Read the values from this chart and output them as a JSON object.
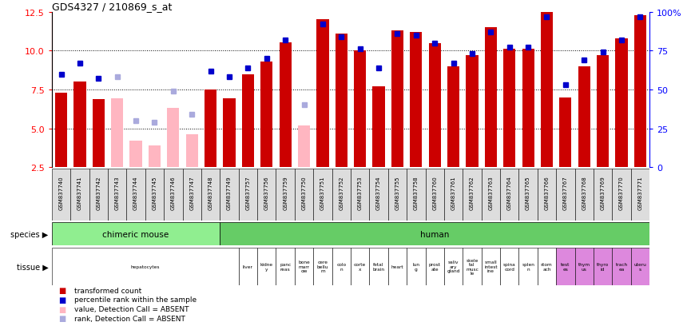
{
  "title": "GDS4327 / 210869_s_at",
  "samples": [
    "GSM837740",
    "GSM837741",
    "GSM837742",
    "GSM837743",
    "GSM837744",
    "GSM837745",
    "GSM837746",
    "GSM837747",
    "GSM837748",
    "GSM837749",
    "GSM837757",
    "GSM837756",
    "GSM837759",
    "GSM837750",
    "GSM837751",
    "GSM837752",
    "GSM837753",
    "GSM837754",
    "GSM837755",
    "GSM837758",
    "GSM837760",
    "GSM837761",
    "GSM837762",
    "GSM837763",
    "GSM837764",
    "GSM837765",
    "GSM837766",
    "GSM837767",
    "GSM837768",
    "GSM837769",
    "GSM837770",
    "GSM837771"
  ],
  "values": [
    7.3,
    8.0,
    6.9,
    6.95,
    4.2,
    3.9,
    6.3,
    4.6,
    7.5,
    6.95,
    8.5,
    9.3,
    10.55,
    5.2,
    12.0,
    11.1,
    10.0,
    7.7,
    11.3,
    11.2,
    10.5,
    9.0,
    9.7,
    11.5,
    10.1,
    10.1,
    12.5,
    7.0,
    9.0,
    9.7,
    10.8,
    12.3
  ],
  "absent": [
    false,
    false,
    false,
    true,
    true,
    true,
    true,
    true,
    false,
    false,
    false,
    false,
    false,
    true,
    false,
    false,
    false,
    false,
    false,
    false,
    false,
    false,
    false,
    false,
    false,
    false,
    false,
    false,
    false,
    false,
    false,
    false
  ],
  "percentile": [
    60,
    67,
    57,
    58,
    30,
    29,
    49,
    34,
    62,
    58,
    64,
    70,
    82,
    40,
    92,
    84,
    76,
    64,
    86,
    85,
    80,
    67,
    73,
    87,
    77,
    77,
    97,
    53,
    69,
    74,
    82,
    97
  ],
  "species_groups": [
    {
      "label": "chimeric mouse",
      "start": 0,
      "end": 9,
      "color": "#90EE90"
    },
    {
      "label": "human",
      "start": 9,
      "end": 32,
      "color": "#66CC66"
    }
  ],
  "tissue_labels": [
    {
      "label": "hepatocytes",
      "start": 0,
      "end": 10
    },
    {
      "label": "liver",
      "start": 10,
      "end": 11
    },
    {
      "label": "kidne\ny",
      "start": 11,
      "end": 12
    },
    {
      "label": "panc\nreas",
      "start": 12,
      "end": 13
    },
    {
      "label": "bone\nmarr\now",
      "start": 13,
      "end": 14
    },
    {
      "label": "cere\nbellu\nm",
      "start": 14,
      "end": 15
    },
    {
      "label": "colo\nn",
      "start": 15,
      "end": 16
    },
    {
      "label": "corte\nx",
      "start": 16,
      "end": 17
    },
    {
      "label": "fetal\nbrain",
      "start": 17,
      "end": 18
    },
    {
      "label": "heart",
      "start": 18,
      "end": 19
    },
    {
      "label": "lun\ng",
      "start": 19,
      "end": 20
    },
    {
      "label": "prost\nate",
      "start": 20,
      "end": 21
    },
    {
      "label": "saliv\nary\ngland",
      "start": 21,
      "end": 22
    },
    {
      "label": "skele\ntal\nmusc\nle",
      "start": 22,
      "end": 23
    },
    {
      "label": "small\nintest\nine",
      "start": 23,
      "end": 24
    },
    {
      "label": "spina\ncord",
      "start": 24,
      "end": 25
    },
    {
      "label": "splen\nn",
      "start": 25,
      "end": 26
    },
    {
      "label": "stom\nach",
      "start": 26,
      "end": 27
    },
    {
      "label": "test\nes",
      "start": 27,
      "end": 28
    },
    {
      "label": "thym\nus",
      "start": 28,
      "end": 29
    },
    {
      "label": "thyro\nid",
      "start": 29,
      "end": 30
    },
    {
      "label": "trach\nea",
      "start": 30,
      "end": 31
    },
    {
      "label": "uteru\ns",
      "start": 31,
      "end": 32
    }
  ],
  "tissue_colors": {
    "hepatocytes": "#FFFFFF",
    "liver": "#FFFFFF",
    "kidne\ny": "#FFFFFF",
    "panc\nreas": "#FFFFFF",
    "bone\nmarr\now": "#FFFFFF",
    "cere\nbellu\nm": "#FFFFFF",
    "colo\nn": "#FFFFFF",
    "corte\nx": "#FFFFFF",
    "fetal\nbrain": "#FFFFFF",
    "heart": "#FFFFFF",
    "lun\ng": "#FFFFFF",
    "prost\nate": "#FFFFFF",
    "saliv\nary\ngland": "#FFFFFF",
    "skele\ntal\nmusc\nle": "#FFFFFF",
    "small\nintest\nine": "#FFFFFF",
    "spina\ncord": "#FFFFFF",
    "splen\nn": "#FFFFFF",
    "stom\nach": "#FFFFFF",
    "test\nes": "#DD88DD",
    "thym\nus": "#DD88DD",
    "thyro\nid": "#DD88DD",
    "trach\nea": "#DD88DD",
    "uteru\ns": "#DD88DD"
  },
  "ylim": [
    2.5,
    12.5
  ],
  "yticks": [
    2.5,
    5.0,
    7.5,
    10.0,
    12.5
  ],
  "right_yticks": [
    0,
    25,
    50,
    75,
    100
  ],
  "bar_color_present": "#CC0000",
  "bar_color_absent": "#FFB6C1",
  "dot_color_present": "#0000CC",
  "dot_color_absent": "#AAAADD",
  "background_color": "#FFFFFF",
  "xticklabel_bg": "#DDDDDD"
}
